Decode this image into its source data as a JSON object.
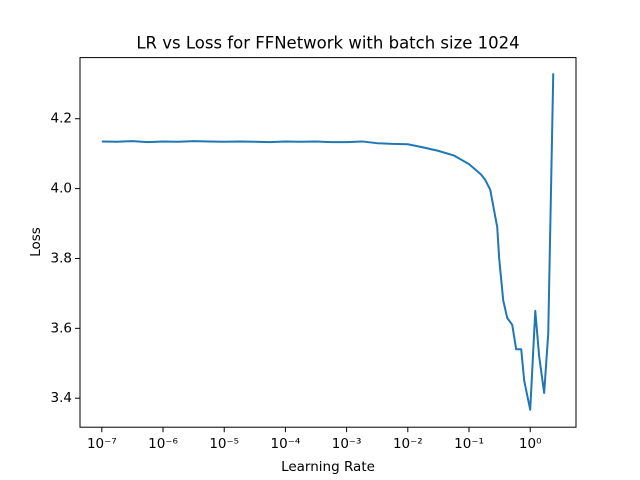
{
  "chart_data": {
    "type": "line",
    "title": "LR vs Loss for FFNetwork with batch size 1024",
    "xlabel": "Learning Rate",
    "ylabel": "Loss",
    "xscale": "log",
    "xlim": [
      4.4e-08,
      5.6
    ],
    "ylim": [
      3.317,
      4.375
    ],
    "xticks": [
      {
        "value": 1e-07,
        "label": "10⁻⁷"
      },
      {
        "value": 1e-06,
        "label": "10⁻⁶"
      },
      {
        "value": 1e-05,
        "label": "10⁻⁵"
      },
      {
        "value": 0.0001,
        "label": "10⁻⁴"
      },
      {
        "value": 0.001,
        "label": "10⁻³"
      },
      {
        "value": 0.01,
        "label": "10⁻²"
      },
      {
        "value": 0.1,
        "label": "10⁻¹"
      },
      {
        "value": 1,
        "label": "10⁰"
      }
    ],
    "yticks": [
      3.4,
      3.6,
      3.8,
      {
        "value": 4,
        "label": "4.0"
      },
      4.2
    ],
    "series": [
      {
        "color": "#1f77b4",
        "x": [
          1e-07,
          1.78e-07,
          3.16e-07,
          5.62e-07,
          1e-06,
          1.78e-06,
          3.16e-06,
          5.62e-06,
          1e-05,
          1.78e-05,
          3.16e-05,
          5.62e-05,
          0.0001,
          0.000178,
          0.000316,
          0.000562,
          0.001,
          0.00178,
          0.00316,
          0.00562,
          0.01,
          0.0178,
          0.0316,
          0.0562,
          0.1,
          0.126,
          0.158,
          0.184,
          0.222,
          0.289,
          0.311,
          0.362,
          0.421,
          0.508,
          0.59,
          0.713,
          0.798,
          1.0,
          1.21,
          1.4,
          1.69,
          1.97,
          2.38
        ],
        "values": [
          4.135,
          4.134,
          4.136,
          4.133,
          4.135,
          4.134,
          4.136,
          4.135,
          4.134,
          4.135,
          4.134,
          4.133,
          4.135,
          4.134,
          4.135,
          4.133,
          4.133,
          4.135,
          4.13,
          4.128,
          4.127,
          4.118,
          4.108,
          4.095,
          4.07,
          4.055,
          4.04,
          4.025,
          3.997,
          3.89,
          3.8,
          3.68,
          3.63,
          3.61,
          3.54,
          3.54,
          3.45,
          3.367,
          3.65,
          3.52,
          3.415,
          3.585,
          4.33
        ]
      }
    ]
  }
}
